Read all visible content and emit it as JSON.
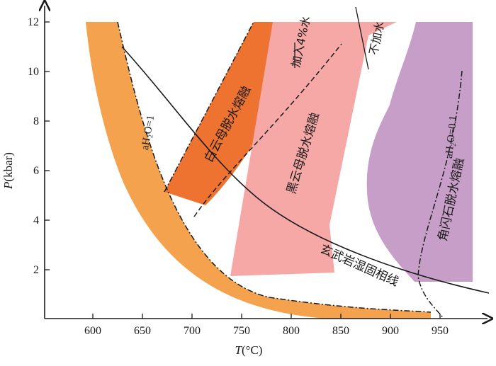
{
  "axes": {
    "x": {
      "label_var": "T",
      "label_unit": "(°C)",
      "ticks": [
        "600",
        "650",
        "700",
        "750",
        "800",
        "850",
        "900",
        "950"
      ]
    },
    "y": {
      "label_var": "P",
      "label_unit": "(kbar)",
      "ticks": [
        "2",
        "4",
        "6",
        "8",
        "10",
        "12"
      ]
    }
  },
  "labels": {
    "dolomite_melting": "白云母脱水熔融",
    "biotite_melting": "黑云母脱水熔融",
    "hornblende_melting": "角闪石脱水熔融",
    "basalt_solidus": "玄武岩湿固相线",
    "add_water": "加入4%水",
    "no_water": "不加水",
    "ah2o_1": "aH₂O=1",
    "ah2o_01": "aH₂O=0.1"
  },
  "colors": {
    "orange_band": "#f5a24f",
    "dolomite": "#ee7330",
    "biotite": "#f6a8a7",
    "hornblende": "#c79ec8",
    "lines": "#1a1a1a"
  }
}
